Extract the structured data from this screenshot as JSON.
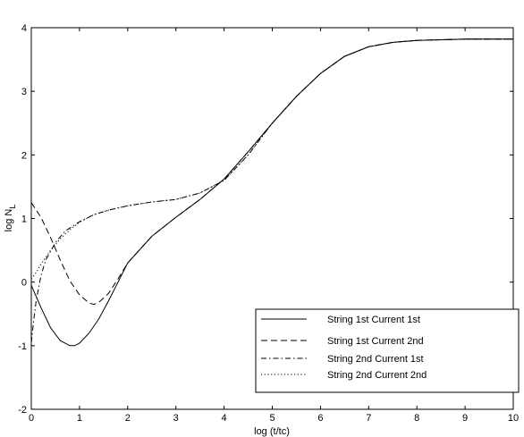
{
  "chart_data": {
    "type": "line",
    "title": "",
    "xlabel": "log (t/tc)",
    "ylabel": "log N",
    "ylabel_subscript": "L",
    "xlim": [
      0,
      10
    ],
    "ylim": [
      -2,
      4
    ],
    "x_ticks": [
      "0",
      "1",
      "2",
      "3",
      "4",
      "5",
      "6",
      "7",
      "8",
      "9",
      "10"
    ],
    "y_ticks": [
      "-2",
      "-1",
      "0",
      "1",
      "2",
      "3",
      "4"
    ],
    "grid": false,
    "legend_position": "bottom-right",
    "series": [
      {
        "name": "String 1st  Current 1st",
        "style": "solid",
        "x": [
          0,
          0.2,
          0.4,
          0.6,
          0.8,
          0.9,
          1.0,
          1.2,
          1.4,
          1.6,
          1.8,
          2.0,
          2.5,
          3.0,
          3.5,
          4.0,
          4.5,
          5.0,
          5.5,
          6.0,
          6.5,
          7.0,
          7.5,
          8.0,
          8.5,
          9.0,
          9.5,
          10.0
        ],
        "y": [
          -0.05,
          -0.4,
          -0.72,
          -0.92,
          -1.0,
          -1.0,
          -0.96,
          -0.8,
          -0.58,
          -0.3,
          0.0,
          0.3,
          0.72,
          1.02,
          1.3,
          1.62,
          2.05,
          2.5,
          2.92,
          3.28,
          3.55,
          3.7,
          3.77,
          3.8,
          3.81,
          3.82,
          3.82,
          3.82
        ]
      },
      {
        "name": "String 1st  Current 2nd",
        "style": "dashed",
        "x": [
          0,
          0.2,
          0.4,
          0.6,
          0.8,
          1.0,
          1.2,
          1.3,
          1.4,
          1.6,
          1.8,
          2.0,
          2.5,
          3.0,
          3.5,
          4.0,
          4.5,
          5.0,
          5.5,
          6.0,
          6.5,
          7.0,
          7.5,
          8.0,
          8.5,
          9.0,
          9.5,
          10.0
        ],
        "y": [
          1.25,
          1.02,
          0.7,
          0.35,
          0.02,
          -0.2,
          -0.33,
          -0.35,
          -0.32,
          -0.18,
          0.05,
          0.3,
          0.72,
          1.02,
          1.3,
          1.62,
          2.05,
          2.5,
          2.92,
          3.28,
          3.55,
          3.7,
          3.77,
          3.8,
          3.81,
          3.82,
          3.82,
          3.82
        ]
      },
      {
        "name": "String 2nd Current 1st",
        "style": "dashdot",
        "x": [
          0,
          0.05,
          0.1,
          0.2,
          0.3,
          0.5,
          0.7,
          1.0,
          1.3,
          1.6,
          2.0,
          2.5,
          3.0,
          3.5,
          4.0,
          4.5,
          5.0,
          5.5,
          6.0,
          6.5,
          7.0,
          7.5,
          8.0,
          8.5,
          9.0,
          9.5,
          10.0
        ],
        "y": [
          -0.95,
          -0.6,
          -0.3,
          0.1,
          0.35,
          0.62,
          0.8,
          0.95,
          1.06,
          1.13,
          1.2,
          1.26,
          1.3,
          1.4,
          1.6,
          2.0,
          2.5,
          2.92,
          3.28,
          3.55,
          3.7,
          3.77,
          3.8,
          3.81,
          3.82,
          3.82,
          3.82
        ]
      },
      {
        "name": "String 2nd  Current 2nd",
        "style": "dotted",
        "x": [
          0,
          0.1,
          0.2,
          0.4,
          0.6,
          0.8,
          1.0,
          1.3,
          1.6,
          2.0,
          2.5,
          3.0,
          3.5,
          4.0,
          4.5,
          5.0,
          5.5,
          6.0,
          6.5,
          7.0,
          7.5,
          8.0,
          8.5,
          9.0,
          9.5,
          10.0
        ],
        "y": [
          0.05,
          0.15,
          0.28,
          0.5,
          0.68,
          0.82,
          0.94,
          1.06,
          1.13,
          1.2,
          1.26,
          1.3,
          1.4,
          1.6,
          2.0,
          2.5,
          2.92,
          3.28,
          3.55,
          3.7,
          3.77,
          3.8,
          3.81,
          3.82,
          3.82,
          3.82
        ]
      }
    ]
  }
}
